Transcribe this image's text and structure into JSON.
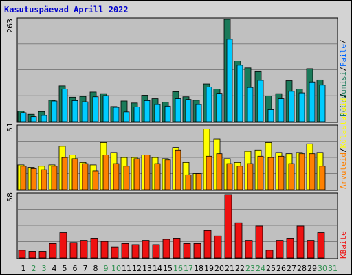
{
  "title": "Kasutuspäevad Aprill 2022",
  "colors": {
    "hits": "#1a7a5a",
    "files": "#00ccff",
    "pages": "#ffff00",
    "visits": "#ff8000",
    "kbytes": "#ee1111",
    "weekend_label": "#2f8f4f",
    "weekday_label": "#000000"
  },
  "chart_data": [
    {
      "type": "bar",
      "panel": "top",
      "ymax_label": "263",
      "ylim": [
        0,
        263
      ],
      "categories": [
        "1",
        "2",
        "3",
        "4",
        "5",
        "6",
        "7",
        "8",
        "9",
        "10",
        "11",
        "12",
        "13",
        "14",
        "15",
        "16",
        "17",
        "18",
        "19",
        "20",
        "21",
        "22",
        "23",
        "24",
        "25",
        "26",
        "27",
        "28",
        "29",
        "30",
        "31"
      ],
      "series": [
        {
          "name": "Pöördumisi",
          "values": [
            27,
            19,
            26,
            55,
            92,
            63,
            65,
            76,
            72,
            39,
            53,
            48,
            68,
            59,
            50,
            77,
            64,
            55,
            97,
            84,
            263,
            156,
            138,
            130,
            66,
            72,
            105,
            84,
            136,
            107,
            0
          ]
        },
        {
          "name": "Faile",
          "values": [
            23,
            13,
            16,
            53,
            84,
            54,
            51,
            64,
            67,
            37,
            25,
            38,
            54,
            44,
            40,
            59,
            57,
            44,
            89,
            73,
            212,
            145,
            88,
            106,
            31,
            59,
            78,
            74,
            102,
            94,
            0
          ]
        }
      ],
      "legend_labels": [
        "Pöördumisi",
        "/",
        "Faile",
        "/"
      ]
    },
    {
      "type": "bar",
      "panel": "middle",
      "ymax_label": "51",
      "ylim": [
        0,
        51
      ],
      "categories": [
        "1",
        "2",
        "3",
        "4",
        "5",
        "6",
        "7",
        "8",
        "9",
        "10",
        "11",
        "12",
        "13",
        "14",
        "15",
        "16",
        "17",
        "18",
        "19",
        "20",
        "21",
        "22",
        "23",
        "24",
        "25",
        "26",
        "27",
        "28",
        "29",
        "30",
        "31"
      ],
      "series": [
        {
          "name": "Külastajaid",
          "values": [
            20,
            18,
            19,
            20,
            35,
            28,
            22,
            20,
            38,
            30,
            26,
            26,
            28,
            26,
            25,
            34,
            22,
            13,
            49,
            41,
            25,
            22,
            31,
            32,
            38,
            30,
            29,
            30,
            37,
            30,
            0
          ]
        },
        {
          "name": "Arvuteid",
          "values": [
            19,
            17,
            16,
            19,
            26,
            25,
            21,
            15,
            28,
            21,
            19,
            25,
            28,
            21,
            24,
            32,
            12,
            13,
            27,
            29,
            21,
            19,
            21,
            27,
            26,
            27,
            21,
            29,
            29,
            19,
            0
          ]
        }
      ],
      "legend_labels": [
        "Külastajaid",
        "/",
        "Arvuteid",
        "/"
      ]
    },
    {
      "type": "bar",
      "panel": "bottom",
      "ymax_label": "58",
      "ylim": [
        0,
        58
      ],
      "categories": [
        "1",
        "2",
        "3",
        "4",
        "5",
        "6",
        "7",
        "8",
        "9",
        "10",
        "11",
        "12",
        "13",
        "14",
        "15",
        "16",
        "17",
        "18",
        "19",
        "20",
        "21",
        "22",
        "23",
        "24",
        "25",
        "26",
        "27",
        "28",
        "29",
        "30",
        "31"
      ],
      "series": [
        {
          "name": "KBaite",
          "values": [
            7,
            6,
            6,
            13,
            23,
            14,
            16,
            18,
            15,
            10,
            13,
            12,
            16,
            12,
            17,
            18,
            13,
            13,
            25,
            20,
            58,
            32,
            16,
            29,
            7,
            16,
            18,
            29,
            16,
            23,
            0
          ]
        }
      ],
      "legend_labels": [
        "KBaite"
      ]
    }
  ],
  "weekend_days": [
    2,
    3,
    9,
    10,
    16,
    17,
    23,
    24,
    30,
    31
  ]
}
